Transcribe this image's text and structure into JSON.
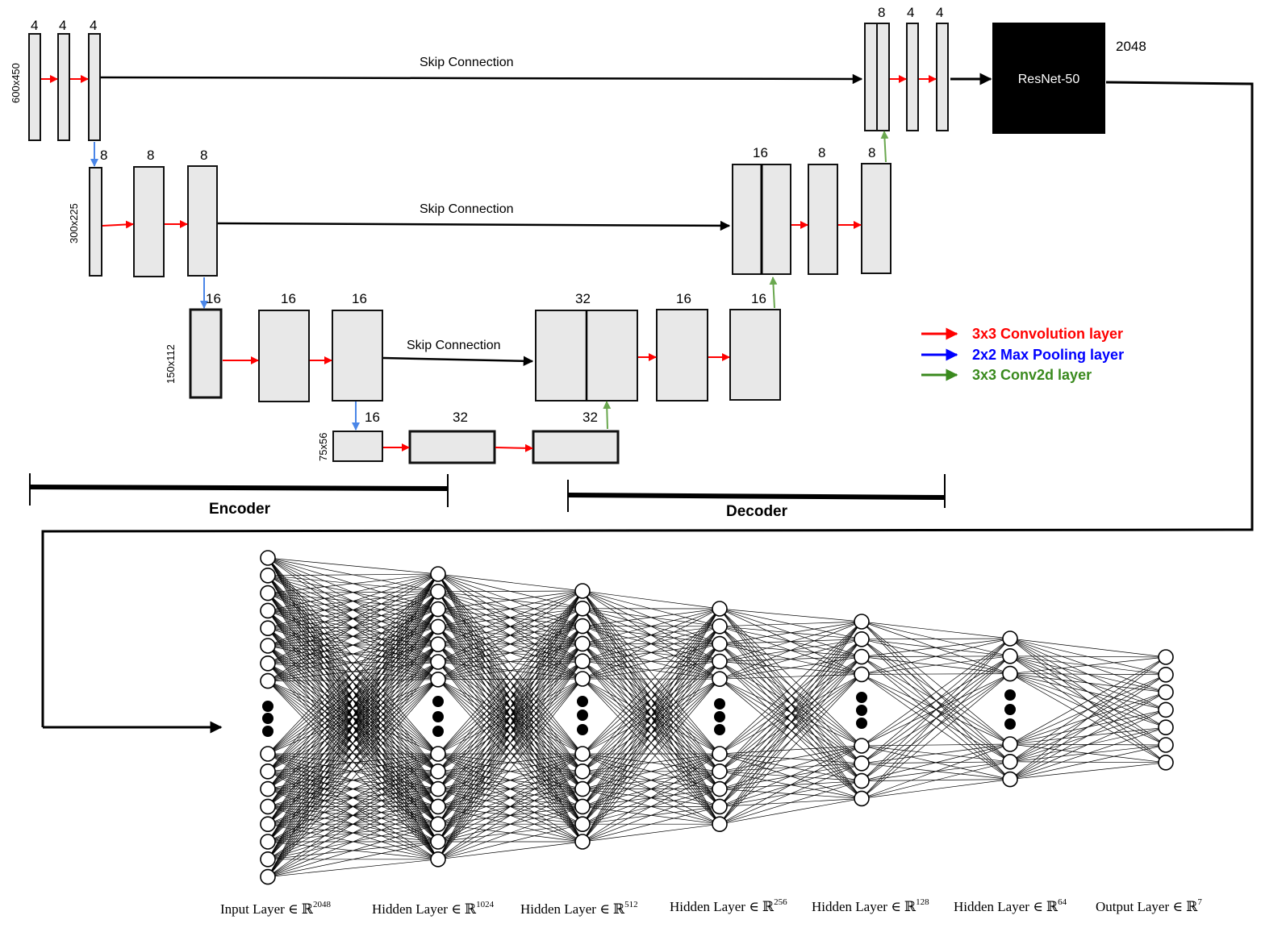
{
  "encoder_decoder": {
    "level1": {
      "resolution": "600x450",
      "encoder_channels": [
        "4",
        "4",
        "4"
      ],
      "decoder_channels": [
        "8",
        "4",
        "4"
      ],
      "skip_label": "Skip Connection"
    },
    "level2": {
      "resolution": "300x225",
      "encoder_channels": [
        "8",
        "8",
        "8"
      ],
      "decoder_channels": [
        "16",
        "8",
        "8"
      ],
      "skip_label": "Skip Connection"
    },
    "level3": {
      "resolution": "150x112",
      "encoder_channels": [
        "16",
        "16",
        "16"
      ],
      "decoder_channels": [
        "32",
        "16",
        "16"
      ],
      "skip_label": "Skip Connection"
    },
    "level4": {
      "resolution": "75x56",
      "channels": [
        "16",
        "32",
        "32"
      ]
    },
    "resnet": {
      "label": "ResNet-50",
      "output_dim": "2048"
    },
    "encoder_label": "Encoder",
    "decoder_label": "Decoder"
  },
  "legend": [
    {
      "label": "3x3 Convolution layer",
      "color": "#ff0000"
    },
    {
      "label": "2x2 Max Pooling layer",
      "color": "#0000ff"
    },
    {
      "label": "3x3 Conv2d layer",
      "color": "#3a8a1e"
    }
  ],
  "arrow_colors": {
    "conv": "#ff0000",
    "pool": "#4a86e8",
    "upconv": "#6aa84f"
  },
  "mlp": {
    "layers": [
      {
        "name": "Input Layer",
        "dim": "2048",
        "nodes_top": 8,
        "nodes_bottom": 8
      },
      {
        "name": "Hidden Layer",
        "dim": "1024",
        "nodes_top": 7,
        "nodes_bottom": 7
      },
      {
        "name": "Hidden Layer",
        "dim": "512",
        "nodes_top": 6,
        "nodes_bottom": 6
      },
      {
        "name": "Hidden Layer",
        "dim": "256",
        "nodes_top": 5,
        "nodes_bottom": 5
      },
      {
        "name": "Hidden Layer",
        "dim": "128",
        "nodes_top": 4,
        "nodes_bottom": 4
      },
      {
        "name": "Hidden Layer",
        "dim": "64",
        "nodes_top": 3,
        "nodes_bottom": 3
      },
      {
        "name": "Output Layer",
        "dim": "7",
        "nodes_top": 7,
        "nodes_bottom": 0
      }
    ],
    "membership_symbol": "∈",
    "real_symbol": "ℝ"
  }
}
